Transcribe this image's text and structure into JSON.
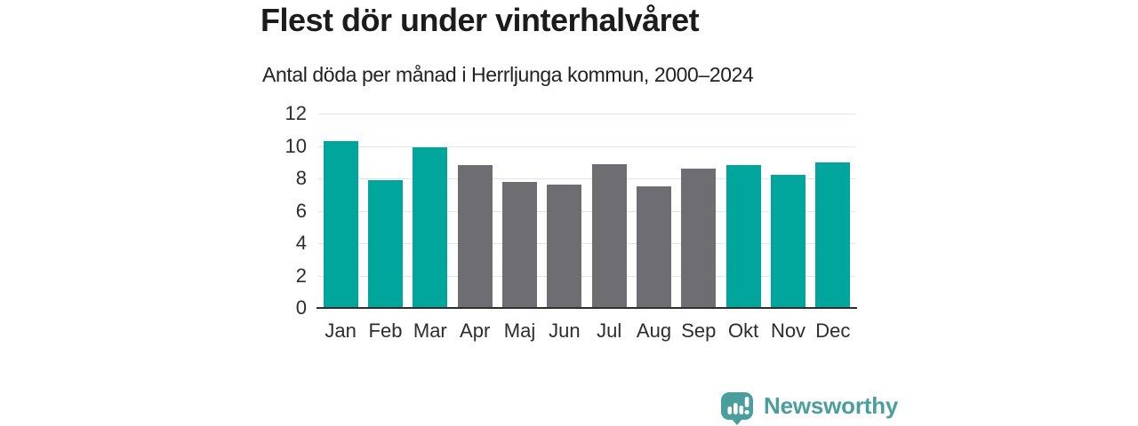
{
  "header": {
    "title": "Flest dör under vinterhalvåret",
    "subtitle": "Antal döda per månad i Herrljunga kommun, 2000–2024"
  },
  "chart_data": {
    "type": "bar",
    "title": "Flest dör under vinterhalvåret",
    "subtitle": "Antal döda per månad i Herrljunga kommun, 2000–2024",
    "categories": [
      "Jan",
      "Feb",
      "Mar",
      "Apr",
      "Maj",
      "Jun",
      "Jul",
      "Aug",
      "Sep",
      "Okt",
      "Nov",
      "Dec"
    ],
    "values": [
      10.3,
      7.9,
      9.9,
      8.8,
      7.8,
      7.6,
      8.9,
      7.5,
      8.6,
      8.8,
      8.2,
      9.0
    ],
    "bar_color_keys": [
      "teal",
      "teal",
      "teal",
      "gray",
      "gray",
      "gray",
      "gray",
      "gray",
      "gray",
      "teal",
      "teal",
      "teal"
    ],
    "colors": {
      "teal": "#00A59B",
      "gray": "#6E6D72"
    },
    "highlight_meaning": "winter half-year months in teal, summer half-year months in gray",
    "xlabel": "",
    "ylabel": "",
    "ylim": [
      0,
      12
    ],
    "yticks": [
      0,
      2,
      4,
      6,
      8,
      10,
      12
    ],
    "grid": true,
    "gridline_color": "#e4e4e4",
    "baseline_color": "#2e2e2e",
    "tick_label_color": "#2d2d2d",
    "legend": "none"
  },
  "footer": {
    "brand": "Newsworthy",
    "brand_color": "#4A9E9B",
    "logo_icon": "newsworthy-speech-bubble-bar-chart-icon"
  }
}
